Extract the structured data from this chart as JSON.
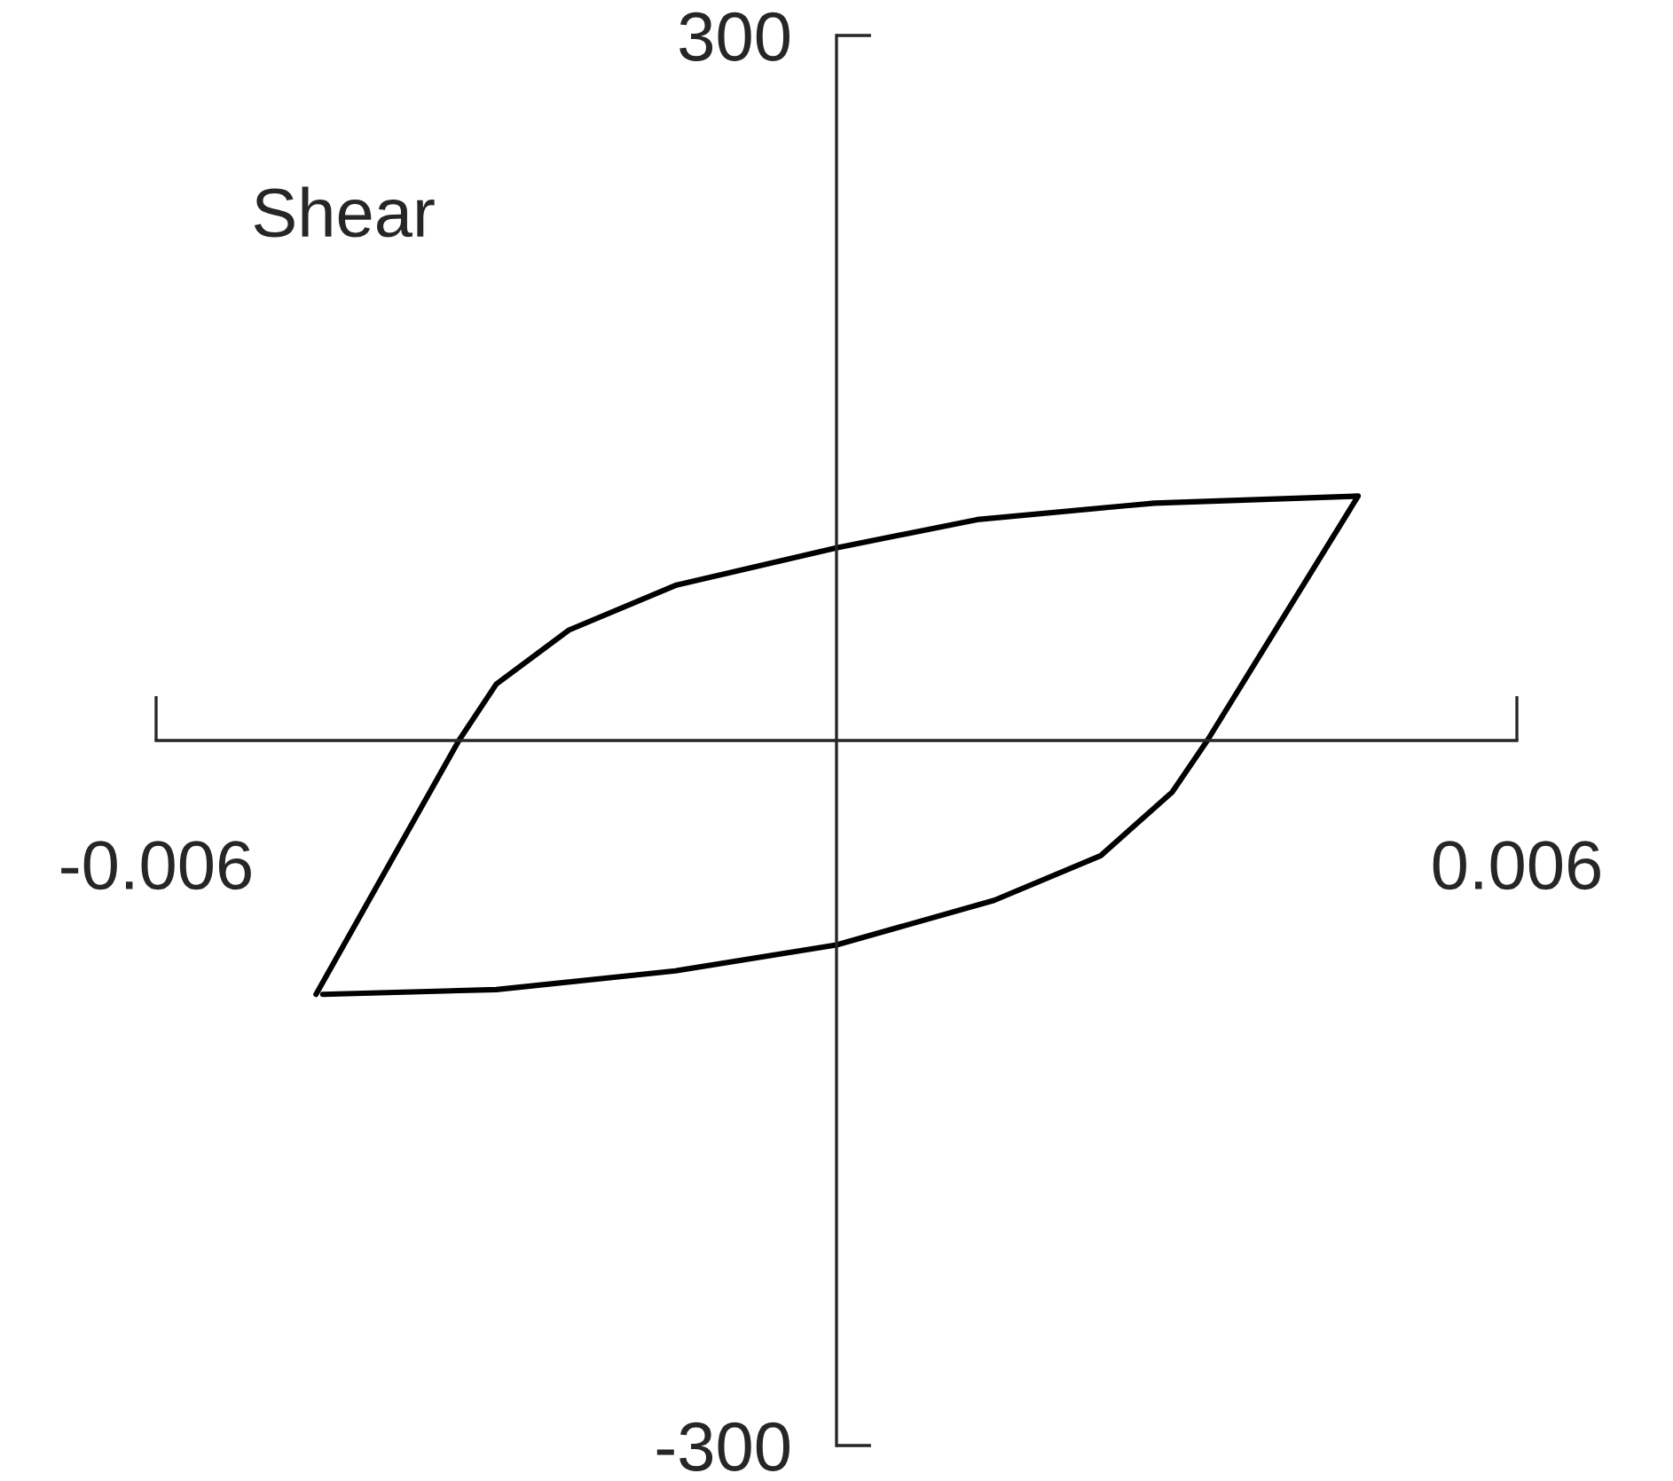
{
  "chart_data": {
    "type": "line",
    "annotations": [
      "Shear"
    ],
    "series": [
      {
        "color": "#000000",
        "x": [
          -0.00459,
          -0.00333,
          -0.003,
          -0.00236,
          -0.00142,
          0,
          0.00124,
          0.0028,
          0.0046,
          0.00327,
          0.00296,
          0.00233,
          0.00139,
          0,
          -0.00142,
          -0.003,
          -0.00453
        ],
        "values": [
          -108,
          0,
          24,
          47,
          66,
          82,
          94,
          101,
          104,
          0,
          -22,
          -49,
          -68,
          -87,
          -98,
          -106,
          -108
        ]
      }
    ],
    "xlim": [
      -0.006,
      0.006
    ],
    "xticks": [
      -0.006,
      0.006
    ],
    "ylim": [
      -300,
      300
    ],
    "yticks": [
      -300,
      300
    ],
    "grid": false,
    "legend": false,
    "marker": "none",
    "line_style": "solid"
  }
}
